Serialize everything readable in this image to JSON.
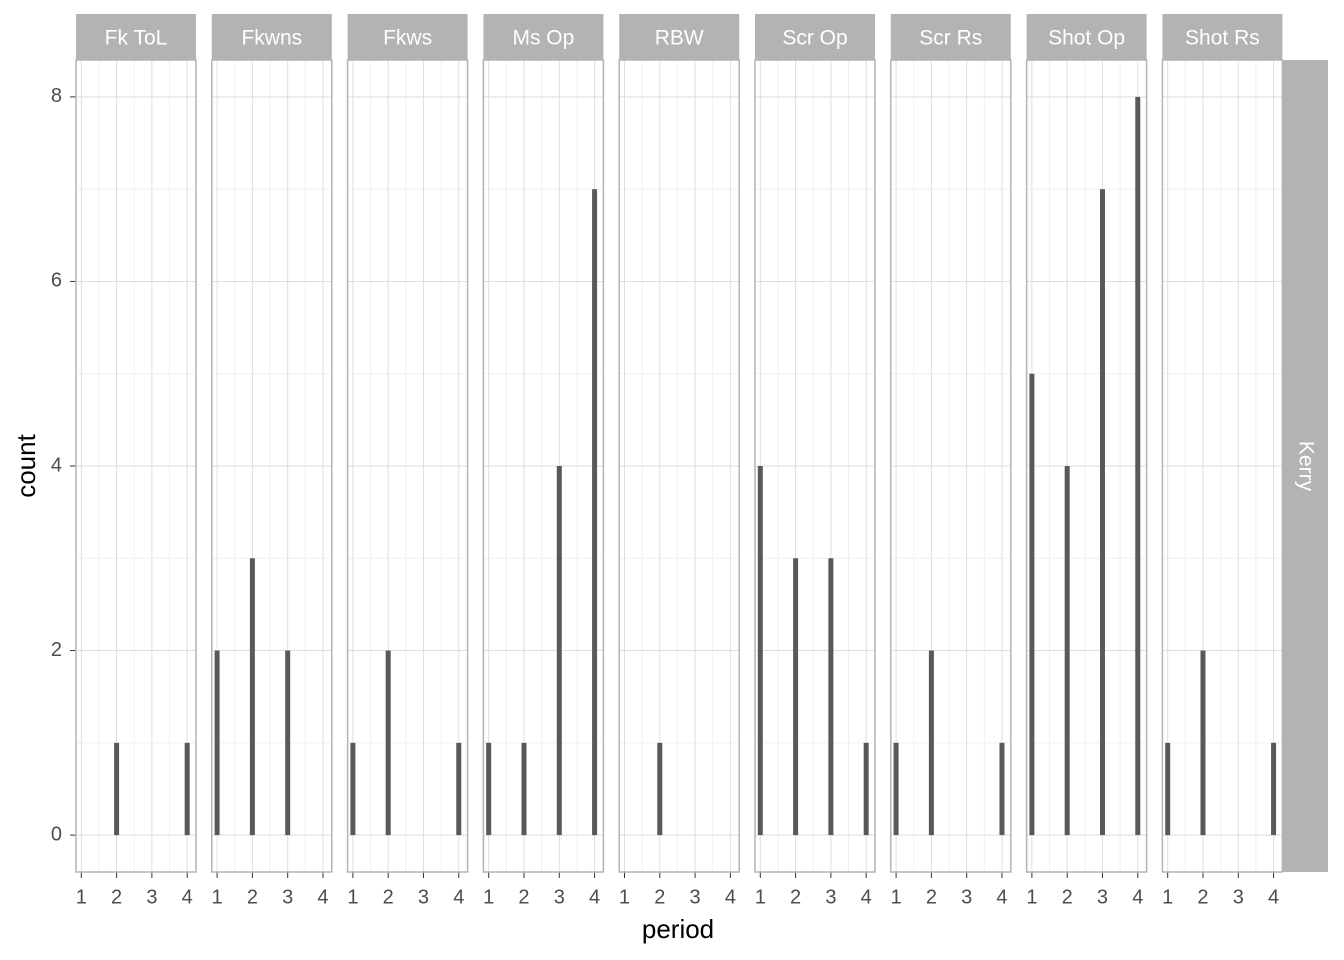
{
  "chart_data": {
    "type": "bar",
    "x_label": "period",
    "y_label": "count",
    "row_strip": "Kerry",
    "color": "#595959",
    "xlim": [
      0.85,
      4.25
    ],
    "xticks": [
      1,
      2,
      3,
      4
    ],
    "ylim": [
      -0.4,
      8.4
    ],
    "yticks": [
      0,
      2,
      4,
      6,
      8
    ],
    "grid": true,
    "facets": [
      {
        "title": "Fk ToL",
        "x": [
          2,
          4
        ],
        "values": [
          1,
          1
        ]
      },
      {
        "title": "Fkwns",
        "x": [
          1,
          2,
          3
        ],
        "values": [
          2,
          3,
          2
        ]
      },
      {
        "title": "Fkws",
        "x": [
          1,
          2,
          4
        ],
        "values": [
          1,
          2,
          1
        ]
      },
      {
        "title": "Ms Op",
        "x": [
          1,
          2,
          3,
          4
        ],
        "values": [
          1,
          1,
          4,
          7
        ]
      },
      {
        "title": "RBW",
        "x": [
          2
        ],
        "values": [
          1
        ]
      },
      {
        "title": "Scr Op",
        "x": [
          1,
          2,
          3,
          4
        ],
        "values": [
          4,
          3,
          3,
          1
        ]
      },
      {
        "title": "Scr Rs",
        "x": [
          1,
          2,
          4
        ],
        "values": [
          1,
          2,
          1
        ]
      },
      {
        "title": "Shot Op",
        "x": [
          1,
          2,
          3,
          4
        ],
        "values": [
          5,
          4,
          7,
          8
        ]
      },
      {
        "title": "Shot Rs",
        "x": [
          1,
          2,
          4
        ],
        "values": [
          1,
          2,
          1
        ]
      }
    ]
  }
}
